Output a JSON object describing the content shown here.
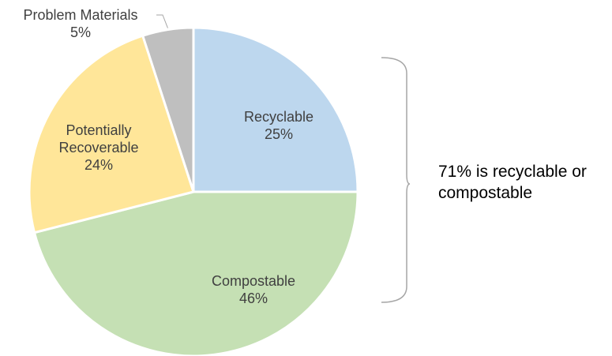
{
  "chart_data": {
    "type": "pie",
    "title": "",
    "start_angle_deg": 0,
    "direction": "clockwise",
    "slices": [
      {
        "name": "Recyclable",
        "label_lines": [
          "Recyclable"
        ],
        "value": 25,
        "value_label": "25%",
        "color": "#BDD7EE"
      },
      {
        "name": "Compostable",
        "label_lines": [
          "Compostable"
        ],
        "value": 46,
        "value_label": "46%",
        "color": "#C5E0B4"
      },
      {
        "name": "Potentially Recoverable",
        "label_lines": [
          "Potentially",
          "Recoverable"
        ],
        "value": 24,
        "value_label": "24%",
        "color": "#FFE699"
      },
      {
        "name": "Problem Materials",
        "label_lines": [
          "Problem Materials"
        ],
        "value": 5,
        "value_label": "5%",
        "color": "#BFBFBF"
      }
    ],
    "annotation": {
      "lines": [
        "71% is recyclable or",
        "compostable"
      ],
      "bracket": "right",
      "spans": [
        "Recyclable",
        "Compostable"
      ]
    }
  }
}
